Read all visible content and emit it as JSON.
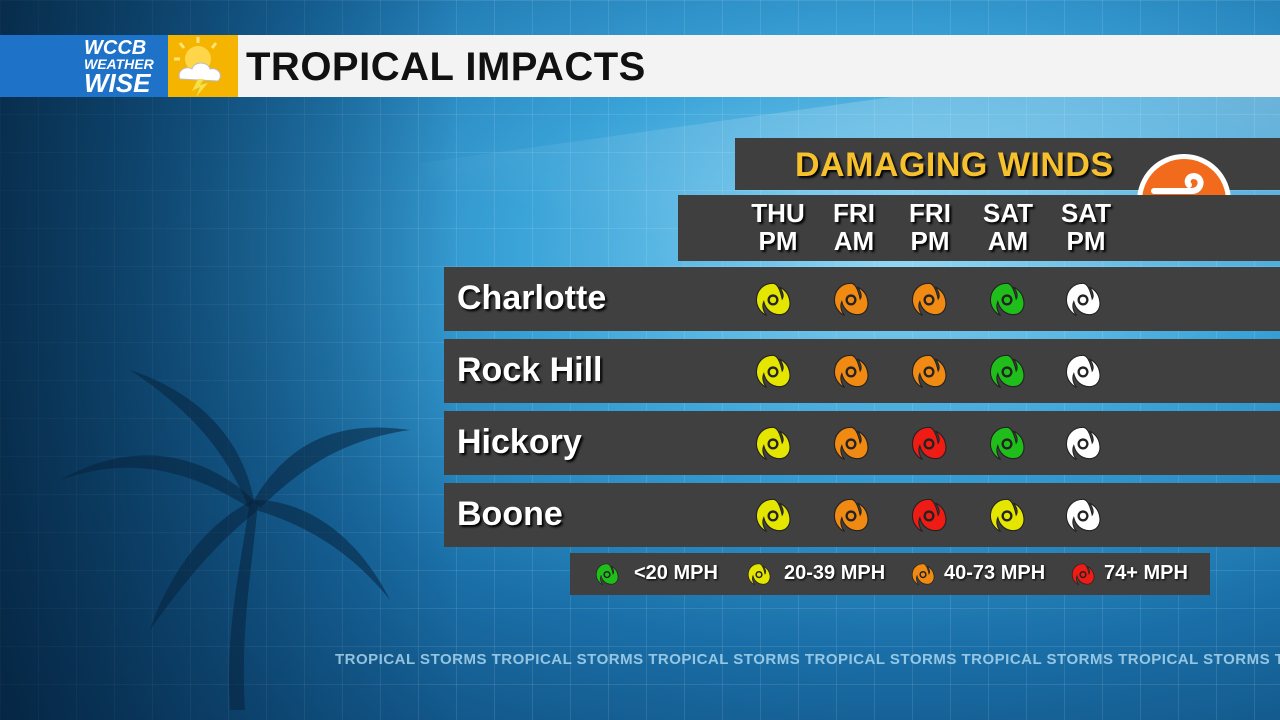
{
  "header": {
    "logo": {
      "line1": "WCCB",
      "line2": "WEATHER",
      "line3": "WISE"
    },
    "title": "TROPICAL IMPACTS"
  },
  "panel": {
    "title": "DAMAGING WINDS",
    "icon": "wind-icon",
    "days": [
      {
        "l1": "THU",
        "l2": "PM"
      },
      {
        "l1": "FRI",
        "l2": "AM"
      },
      {
        "l1": "FRI",
        "l2": "PM"
      },
      {
        "l1": "SAT",
        "l2": "AM"
      },
      {
        "l1": "SAT",
        "l2": "PM"
      }
    ],
    "rows": [
      {
        "city": "Charlotte",
        "levels": [
          "20-39",
          "40-73",
          "40-73",
          "<20",
          "none"
        ]
      },
      {
        "city": "Rock Hill",
        "levels": [
          "20-39",
          "40-73",
          "40-73",
          "<20",
          "none"
        ]
      },
      {
        "city": "Hickory",
        "levels": [
          "20-39",
          "40-73",
          "74+",
          "<20",
          "none"
        ]
      },
      {
        "city": "Boone",
        "levels": [
          "20-39",
          "40-73",
          "74+",
          "20-39",
          "none"
        ]
      }
    ]
  },
  "legend": [
    {
      "label": "<20 MPH",
      "color": "#1fbe1a"
    },
    {
      "label": "20-39 MPH",
      "color": "#e4e600"
    },
    {
      "label": "40-73 MPH",
      "color": "#f08a12"
    },
    {
      "label": "74+ MPH",
      "color": "#ee1c14"
    }
  ],
  "level_colors": {
    "<20": "#1fbe1a",
    "20-39": "#e4e600",
    "40-73": "#f08a12",
    "74+": "#ee1c14",
    "none": "#ffffff"
  },
  "ticker": "TROPICAL STORMS TROPICAL STORMS TROPICAL STORMS TROPICAL STORMS TROPICAL STORMS TROPICAL STORMS TRO"
}
